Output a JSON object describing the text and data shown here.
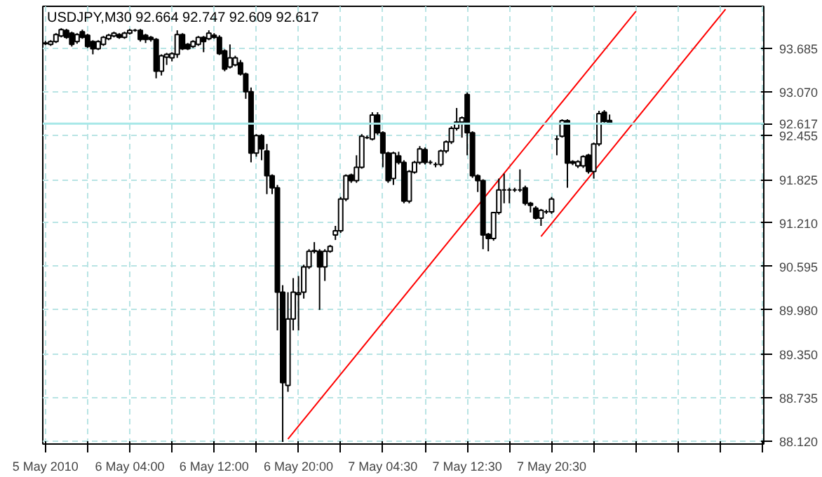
{
  "chart_data": {
    "type": "candlestick",
    "title": "USDJPY,M30  92.664 92.747 92.609 92.617",
    "categories": [
      "5 May 2010",
      null,
      null,
      null,
      null,
      null,
      null,
      null,
      null,
      null,
      null,
      null,
      null,
      null,
      null,
      null,
      "6 May 04:00",
      null,
      null,
      null,
      null,
      null,
      null,
      null,
      null,
      null,
      null,
      null,
      null,
      null,
      null,
      null,
      "6 May 12:00",
      null,
      null,
      null,
      null,
      null,
      null,
      null,
      null,
      null,
      null,
      null,
      null,
      null,
      null,
      null,
      "6 May 20:00",
      null,
      null,
      null,
      null,
      null,
      null,
      null,
      null,
      null,
      null,
      null,
      null,
      null,
      null,
      null,
      "7 May 04:30",
      null,
      null,
      null,
      null,
      null,
      null,
      null,
      null,
      null,
      null,
      null,
      null,
      null,
      null,
      null,
      "7 May 12:30",
      null,
      null,
      null,
      null,
      null,
      null,
      null,
      null,
      null,
      null,
      null,
      null,
      null,
      null,
      null,
      "7 May 20:30",
      null,
      null,
      null,
      null,
      null,
      null,
      null,
      null,
      null,
      null,
      null,
      null,
      null,
      null,
      null,
      null,
      null,
      null,
      null,
      null,
      null,
      null,
      null,
      null,
      null,
      null,
      null,
      null,
      null,
      null,
      null,
      null,
      null,
      null,
      null,
      null,
      null,
      null,
      null,
      null
    ],
    "ohlc": [
      [
        93.76,
        93.79,
        93.73,
        93.75
      ],
      [
        93.74,
        93.8,
        93.72,
        93.78
      ],
      [
        93.78,
        93.9,
        93.76,
        93.88
      ],
      [
        93.86,
        93.97,
        93.84,
        93.95
      ],
      [
        93.94,
        93.96,
        93.82,
        93.84
      ],
      [
        93.9,
        93.92,
        93.71,
        93.74
      ],
      [
        93.78,
        93.9,
        93.75,
        93.88
      ],
      [
        93.92,
        93.95,
        93.82,
        93.84
      ],
      [
        93.87,
        93.89,
        93.69,
        93.71
      ],
      [
        93.78,
        93.8,
        93.6,
        93.68
      ],
      [
        93.68,
        93.8,
        93.66,
        93.78
      ],
      [
        93.74,
        93.86,
        93.72,
        93.84
      ],
      [
        93.82,
        93.89,
        93.8,
        93.87
      ],
      [
        93.86,
        93.92,
        93.84,
        93.9
      ],
      [
        93.88,
        93.9,
        93.82,
        93.84
      ],
      [
        93.84,
        93.92,
        93.82,
        93.9
      ],
      [
        93.9,
        93.96,
        93.88,
        93.94
      ],
      [
        93.94,
        93.96,
        93.92,
        93.94
      ],
      [
        93.94,
        93.96,
        93.78,
        93.81
      ],
      [
        93.87,
        93.89,
        93.76,
        93.81
      ],
      [
        93.84,
        93.86,
        93.78,
        93.81
      ],
      [
        93.81,
        93.83,
        93.26,
        93.36
      ],
      [
        93.36,
        93.6,
        93.3,
        93.58
      ],
      [
        93.56,
        93.62,
        93.45,
        93.6
      ],
      [
        93.55,
        93.63,
        93.5,
        93.61
      ],
      [
        93.6,
        93.94,
        93.55,
        93.88
      ],
      [
        93.88,
        93.9,
        93.66,
        93.68
      ],
      [
        93.74,
        93.76,
        93.66,
        93.68
      ],
      [
        93.71,
        93.8,
        93.69,
        93.78
      ],
      [
        93.74,
        93.86,
        93.72,
        93.84
      ],
      [
        93.84,
        93.86,
        93.63,
        93.78
      ],
      [
        93.82,
        93.94,
        93.8,
        93.9
      ],
      [
        93.87,
        93.9,
        93.82,
        93.84
      ],
      [
        93.84,
        93.87,
        93.59,
        93.61
      ],
      [
        93.65,
        93.67,
        93.36,
        93.39
      ],
      [
        93.42,
        93.74,
        93.4,
        93.55
      ],
      [
        93.45,
        93.58,
        93.43,
        93.55
      ],
      [
        93.48,
        93.52,
        93.3,
        93.32
      ],
      [
        93.32,
        93.34,
        92.97,
        93.07
      ],
      [
        93.07,
        93.13,
        92.07,
        92.2
      ],
      [
        92.2,
        92.47,
        92.15,
        92.45
      ],
      [
        92.45,
        92.47,
        92.1,
        92.26
      ],
      [
        92.23,
        92.33,
        91.62,
        91.88
      ],
      [
        91.88,
        91.9,
        91.62,
        91.71
      ],
      [
        91.71,
        91.75,
        89.69,
        90.23
      ],
      [
        90.23,
        90.33,
        88.11,
        88.95
      ],
      [
        88.91,
        90.23,
        88.82,
        89.85
      ],
      [
        89.85,
        90.43,
        89.69,
        90.23
      ],
      [
        90.2,
        90.46,
        89.69,
        90.22
      ],
      [
        90.23,
        90.62,
        90.14,
        90.59
      ],
      [
        90.59,
        90.84,
        90.56,
        90.81
      ],
      [
        90.81,
        90.94,
        90.78,
        90.82
      ],
      [
        90.81,
        90.84,
        89.98,
        90.59
      ],
      [
        90.59,
        90.84,
        90.39,
        90.81
      ],
      [
        90.81,
        90.9,
        90.79,
        90.88
      ],
      [
        91.04,
        91.17,
        90.97,
        91.1
      ],
      [
        91.1,
        91.58,
        91.07,
        91.55
      ],
      [
        91.55,
        91.9,
        91.52,
        91.88
      ],
      [
        91.89,
        91.91,
        91.78,
        91.81
      ],
      [
        91.81,
        92.17,
        91.78,
        92.0
      ],
      [
        92.0,
        92.47,
        91.98,
        92.44
      ],
      [
        92.42,
        92.45,
        92.4,
        92.42
      ],
      [
        92.4,
        92.78,
        92.38,
        92.74
      ],
      [
        92.74,
        92.78,
        92.46,
        92.49
      ],
      [
        92.49,
        92.51,
        92.0,
        92.2
      ],
      [
        92.2,
        92.22,
        91.78,
        91.81
      ],
      [
        91.84,
        92.22,
        91.75,
        92.2
      ],
      [
        92.16,
        92.22,
        92.04,
        92.07
      ],
      [
        92.07,
        92.1,
        91.49,
        91.52
      ],
      [
        91.52,
        91.96,
        91.49,
        91.94
      ],
      [
        91.93,
        92.09,
        91.91,
        92.07
      ],
      [
        92.07,
        92.3,
        92.04,
        92.26
      ],
      [
        92.25,
        92.28,
        92.04,
        92.07
      ],
      [
        92.07,
        92.1,
        92.04,
        92.07
      ],
      [
        92.04,
        92.07,
        92.0,
        92.04
      ],
      [
        92.04,
        92.25,
        92.01,
        92.23
      ],
      [
        92.23,
        92.38,
        92.2,
        92.36
      ],
      [
        92.36,
        92.58,
        92.33,
        92.55
      ],
      [
        92.55,
        92.84,
        92.52,
        92.64
      ],
      [
        92.64,
        92.72,
        92.42,
        92.7
      ],
      [
        93.03,
        93.06,
        92.17,
        92.49
      ],
      [
        92.49,
        92.51,
        91.85,
        91.88
      ],
      [
        91.88,
        91.9,
        91.65,
        91.81
      ],
      [
        91.81,
        91.83,
        90.84,
        91.04
      ],
      [
        91.05,
        91.07,
        90.81,
        90.99
      ],
      [
        90.99,
        91.36,
        90.96,
        91.36
      ],
      [
        91.36,
        91.84,
        91.33,
        91.68
      ],
      [
        91.68,
        91.91,
        91.49,
        91.68
      ],
      [
        91.68,
        91.71,
        91.49,
        91.68
      ],
      [
        91.68,
        91.71,
        91.65,
        91.68
      ],
      [
        91.68,
        91.97,
        91.65,
        91.68
      ],
      [
        91.71,
        91.74,
        91.46,
        91.49
      ],
      [
        91.49,
        91.51,
        91.36,
        91.46
      ],
      [
        91.42,
        91.45,
        91.26,
        91.28
      ],
      [
        91.28,
        91.41,
        91.17,
        91.39
      ],
      [
        91.37,
        91.4,
        91.34,
        91.37
      ],
      [
        91.37,
        91.58,
        91.34,
        91.55
      ],
      [
        92.4,
        92.45,
        92.17,
        92.4
      ],
      [
        92.44,
        92.68,
        92.42,
        92.66
      ],
      [
        92.66,
        92.68,
        91.71,
        92.06
      ],
      [
        92.08,
        92.1,
        92.03,
        92.06
      ],
      [
        92.02,
        92.1,
        91.99,
        92.08
      ],
      [
        92.02,
        92.17,
        91.99,
        92.15
      ],
      [
        92.17,
        92.19,
        91.91,
        91.94
      ],
      [
        91.94,
        92.35,
        91.84,
        92.33
      ],
      [
        92.33,
        92.8,
        92.3,
        92.76
      ],
      [
        92.78,
        92.81,
        92.63,
        92.65
      ],
      [
        92.664,
        92.747,
        92.609,
        92.617
      ],
      null,
      null,
      null,
      null,
      null,
      null,
      null,
      null,
      null,
      null,
      null,
      null,
      null,
      null,
      null,
      null,
      null,
      null,
      null,
      null,
      null,
      null,
      null,
      null,
      null,
      null,
      null,
      null,
      null
    ],
    "series": [
      {
        "type": "line",
        "color": "#ff0000",
        "values": [
          null,
          null,
          null,
          null,
          null,
          null,
          null,
          null,
          null,
          null,
          null,
          null,
          null,
          null,
          null,
          null,
          null,
          null,
          null,
          null,
          null,
          null,
          null,
          null,
          null,
          null,
          null,
          null,
          null,
          null,
          null,
          null,
          null,
          null,
          null,
          null,
          null,
          null,
          null,
          null,
          null,
          null,
          null,
          null,
          null,
          null,
          88.15,
          null,
          null,
          null,
          null,
          null,
          null,
          null,
          null,
          null,
          null,
          null,
          null,
          null,
          null,
          null,
          null,
          null,
          null,
          null,
          null,
          null,
          null,
          null,
          null,
          null,
          null,
          null,
          null,
          null,
          null,
          null,
          null,
          null,
          null,
          null,
          null,
          null,
          null,
          null,
          null,
          null,
          null,
          null,
          null,
          null,
          null,
          null,
          null,
          null,
          null,
          null,
          null,
          null,
          null,
          null,
          null,
          null,
          null,
          null,
          null,
          null,
          null,
          null,
          null,
          null,
          94.21,
          null,
          null,
          null,
          null,
          null,
          null,
          null,
          null,
          null,
          null,
          null,
          null,
          null,
          null,
          null,
          null,
          null,
          null,
          null,
          null,
          null,
          null,
          null,
          null
        ]
      },
      {
        "type": "line",
        "color": "#ff0000",
        "values": [
          null,
          null,
          null,
          null,
          null,
          null,
          null,
          null,
          null,
          null,
          null,
          null,
          null,
          null,
          null,
          null,
          null,
          null,
          null,
          null,
          null,
          null,
          null,
          null,
          null,
          null,
          null,
          null,
          null,
          null,
          null,
          null,
          null,
          null,
          null,
          null,
          null,
          null,
          null,
          null,
          null,
          null,
          null,
          null,
          null,
          null,
          null,
          null,
          null,
          null,
          null,
          null,
          null,
          null,
          null,
          null,
          null,
          null,
          null,
          null,
          null,
          null,
          null,
          null,
          null,
          null,
          null,
          null,
          null,
          null,
          null,
          null,
          null,
          null,
          null,
          null,
          null,
          null,
          null,
          null,
          null,
          null,
          null,
          null,
          null,
          null,
          null,
          null,
          null,
          null,
          null,
          null,
          null,
          null,
          91.02,
          null,
          null,
          null,
          null,
          null,
          null,
          null,
          null,
          null,
          null,
          null,
          null,
          null,
          null,
          null,
          null,
          null,
          null,
          null,
          null,
          null,
          null,
          null,
          null,
          null,
          null,
          null,
          null,
          null,
          null,
          null,
          null,
          null,
          null,
          94.24,
          null,
          null,
          null,
          null,
          null,
          null,
          null
        ]
      }
    ],
    "ref_lines": [
      {
        "axis": "y",
        "value": 92.617,
        "label": "92.617",
        "color": "#a8e8e8"
      }
    ],
    "ylim": [
      88.08,
      94.28
    ],
    "yticks": [
      {
        "value": 88.12,
        "label": "88.120"
      },
      88.735,
      {
        "value": 89.35,
        "label": "89.350"
      },
      {
        "value": 89.98,
        "label": "89.980"
      },
      90.595,
      {
        "value": 91.21,
        "label": "91.210"
      },
      91.825,
      92.455,
      {
        "value": 93.07,
        "label": "93.070"
      },
      93.685
    ],
    "grid": true
  }
}
